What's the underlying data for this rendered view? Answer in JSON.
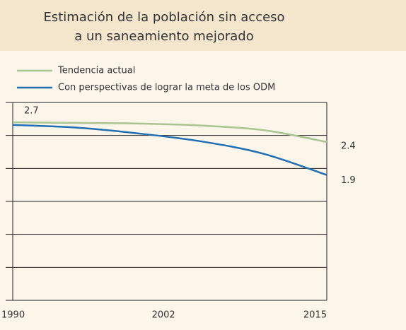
{
  "chart_data": {
    "type": "line",
    "title_lines": [
      "Estimación de la población sin acceso",
      "a un saneamiento mejorado"
    ],
    "x": [
      1990,
      1995,
      2000,
      2005,
      2010,
      2015
    ],
    "series": [
      {
        "name": "Tendencia actual",
        "color": "#a9c592",
        "values": [
          2.7,
          2.69,
          2.68,
          2.65,
          2.58,
          2.4
        ]
      },
      {
        "name": "Con perspectivas de lograr la meta de los ODM",
        "color": "#1f6fb3",
        "values": [
          2.66,
          2.62,
          2.53,
          2.41,
          2.22,
          1.9
        ]
      }
    ],
    "xlim": [
      1990,
      2015
    ],
    "xticks": [
      1990,
      2002,
      2015
    ],
    "ylim": [
      0,
      3
    ],
    "yticks": [
      0.5,
      1,
      1.5,
      2,
      2.5
    ],
    "grid": true
  }
}
